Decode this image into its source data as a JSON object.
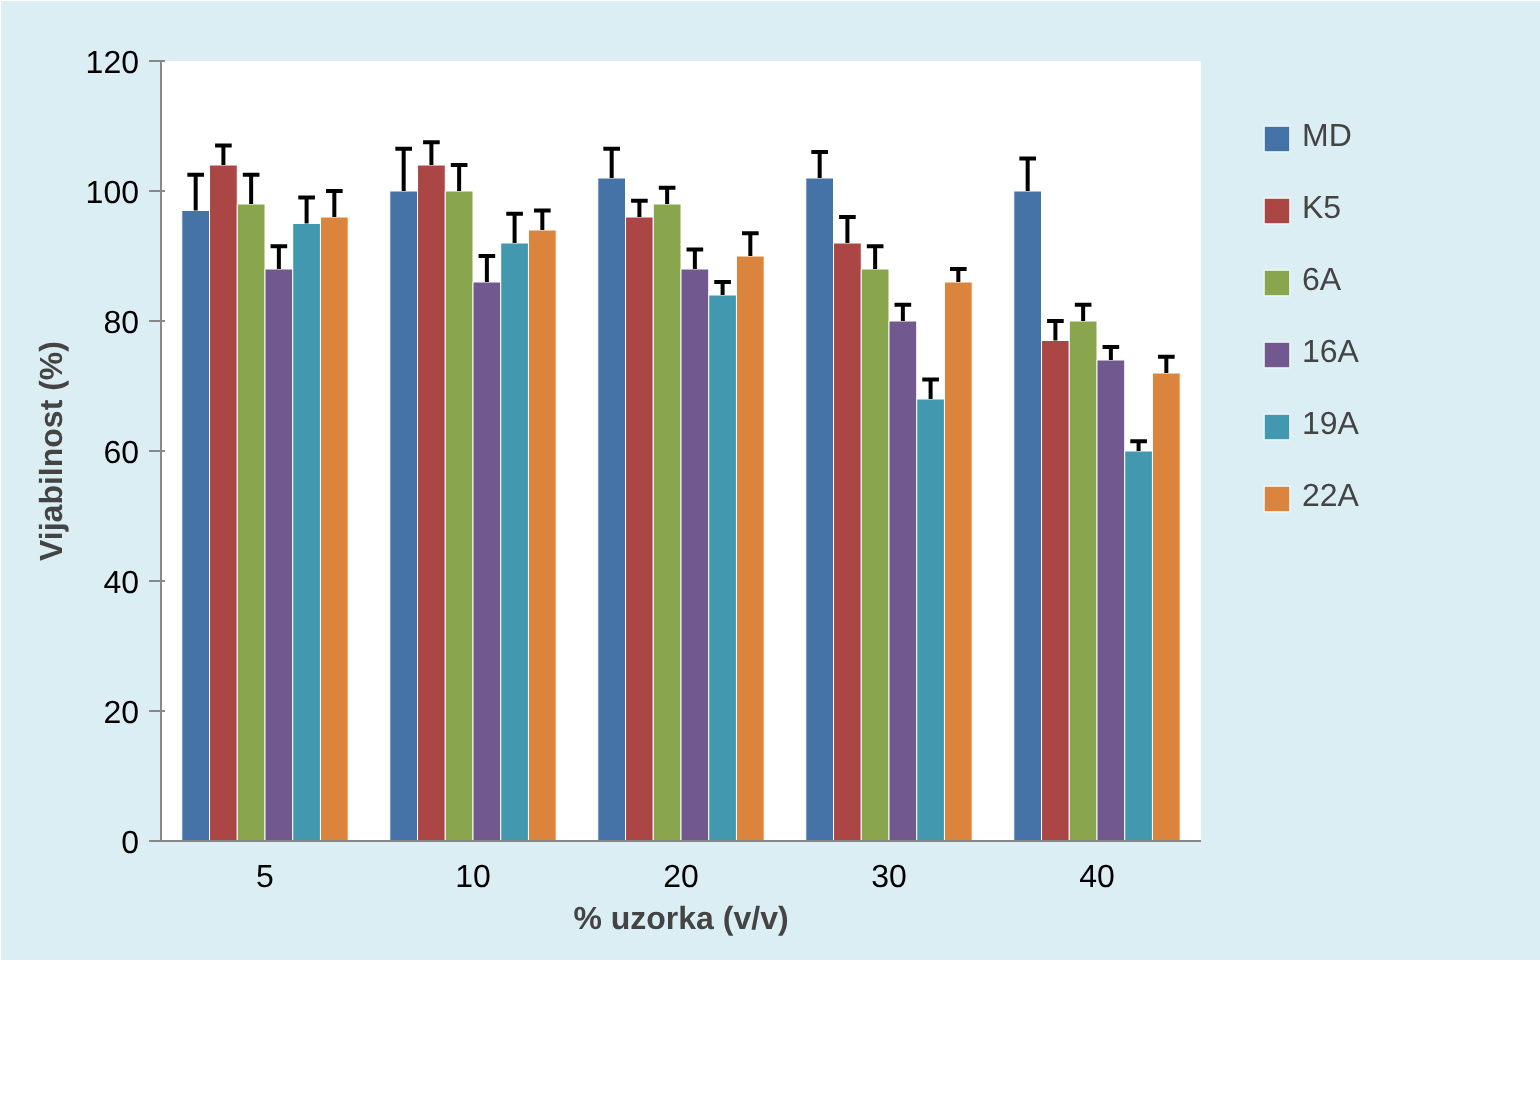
{
  "chart_data": {
    "type": "bar",
    "xlabel": "% uzorka (v/v)",
    "ylabel": "Vijabilnost (%)",
    "categories": [
      "5",
      "10",
      "20",
      "30",
      "40"
    ],
    "series": [
      {
        "name": "MD",
        "color": "#4572a7",
        "values": [
          97,
          100,
          102,
          102,
          100
        ],
        "errors": [
          [
            97,
            102.5
          ],
          [
            100,
            106.5
          ],
          [
            102,
            106.5
          ],
          [
            102,
            106
          ],
          [
            100,
            105
          ]
        ]
      },
      {
        "name": "K5",
        "color": "#aa4643",
        "values": [
          104,
          104,
          96,
          92,
          77
        ],
        "errors": [
          [
            104,
            107
          ],
          [
            104,
            107.5
          ],
          [
            96,
            98.5
          ],
          [
            92,
            96
          ],
          [
            77,
            80
          ]
        ]
      },
      {
        "name": "6A",
        "color": "#89a54e",
        "values": [
          98,
          100,
          98,
          88,
          80
        ],
        "errors": [
          [
            98,
            102.5
          ],
          [
            100,
            104
          ],
          [
            98,
            100.5
          ],
          [
            88,
            91.5
          ],
          [
            80,
            82.5
          ]
        ]
      },
      {
        "name": "16A",
        "color": "#71588f",
        "values": [
          88,
          86,
          88,
          80,
          74
        ],
        "errors": [
          [
            88,
            91.5
          ],
          [
            86,
            90
          ],
          [
            88,
            91
          ],
          [
            80,
            82.5
          ],
          [
            74,
            76
          ]
        ]
      },
      {
        "name": "19A",
        "color": "#4198af",
        "values": [
          95,
          92,
          84,
          68,
          60
        ],
        "errors": [
          [
            95,
            99
          ],
          [
            92,
            96.5
          ],
          [
            84,
            86
          ],
          [
            68,
            71
          ],
          [
            60,
            61.5
          ]
        ]
      },
      {
        "name": "22A",
        "color": "#db843d",
        "values": [
          96,
          94,
          90,
          86,
          72
        ],
        "errors": [
          [
            96,
            100
          ],
          [
            94,
            97
          ],
          [
            90,
            93.5
          ],
          [
            86,
            88
          ],
          [
            72,
            74.5
          ]
        ]
      }
    ],
    "ylim": [
      0,
      120
    ],
    "yticks": [
      0,
      20,
      40,
      60,
      80,
      100,
      120
    ],
    "grid": false,
    "legend": "right"
  }
}
